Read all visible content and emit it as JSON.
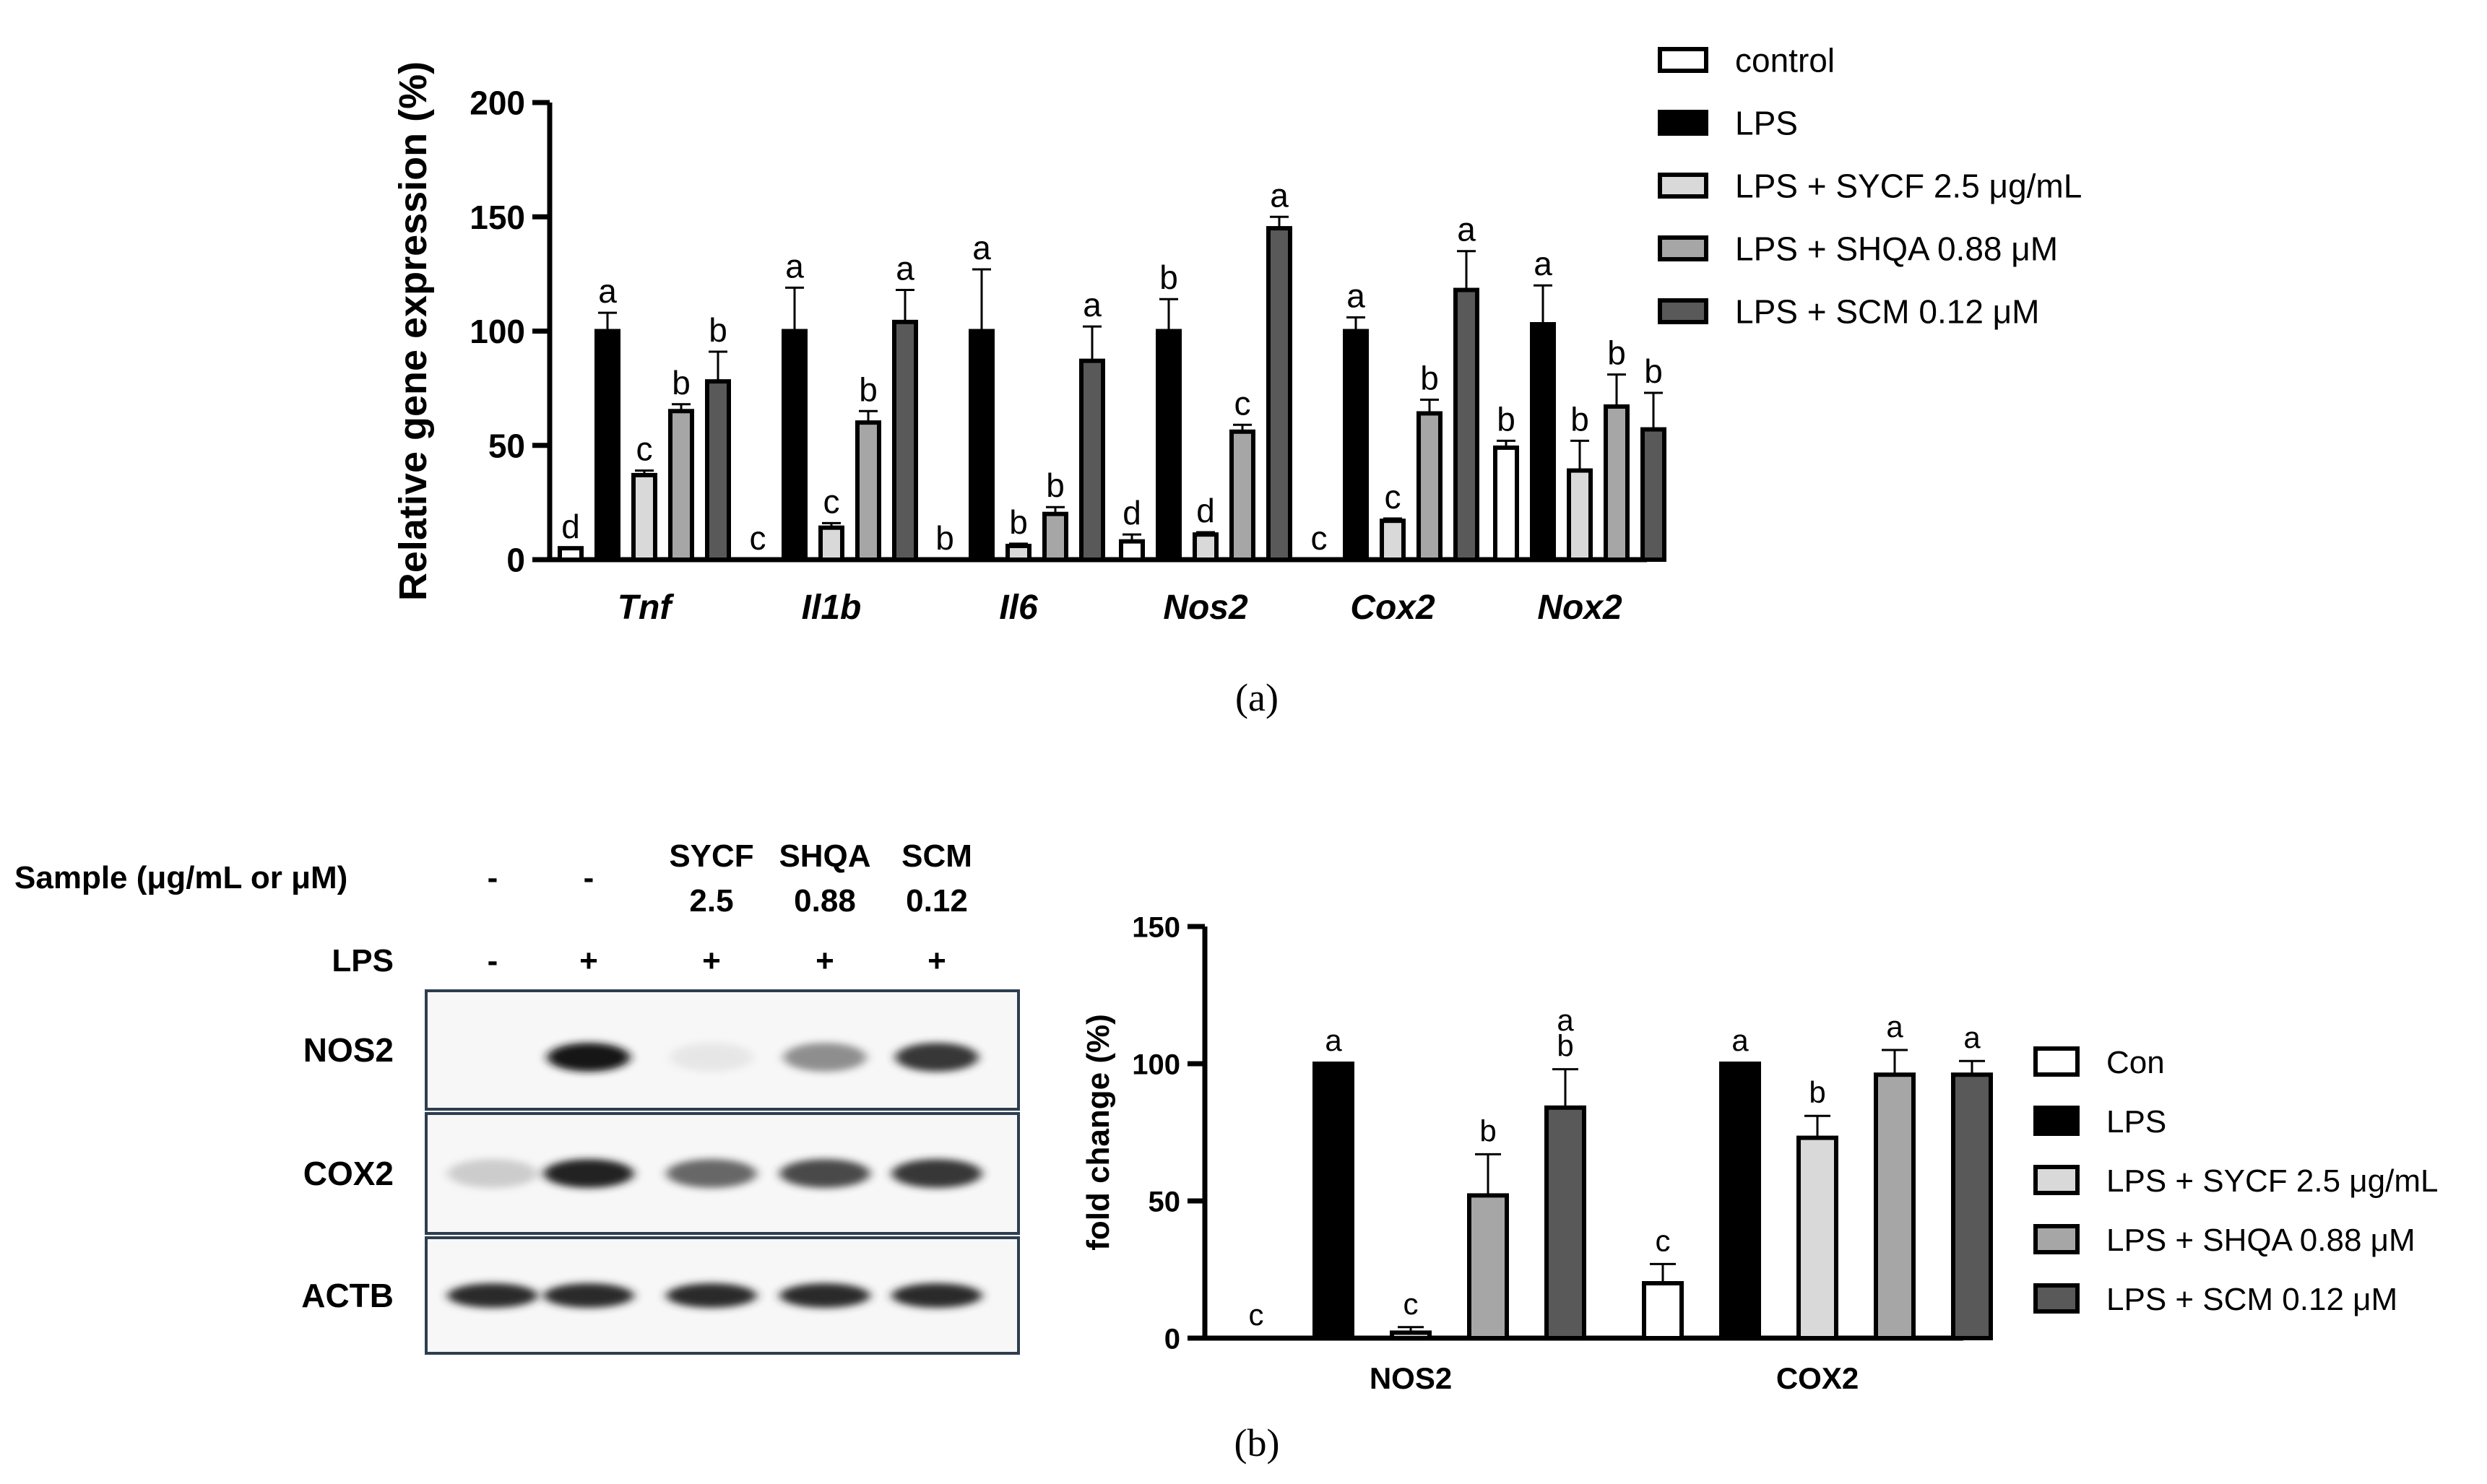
{
  "colors": {
    "control": "#ffffff",
    "lps": "#000000",
    "sycf": "#d9d9d9",
    "shqa": "#a6a6a6",
    "scm": "#595959",
    "blot_frame": "#2d3e50"
  },
  "chart_data": [
    {
      "id": "panel-a",
      "type": "bar",
      "panel_label": "(a)",
      "ylabel": "Relative gene expression (%)",
      "ylim": [
        0,
        200
      ],
      "yticks": [
        "0",
        "50",
        "100",
        "150",
        "200"
      ],
      "categories": [
        "Tnf",
        "Il1b",
        "Il6",
        "Nos2",
        "Cox2",
        "Nox2"
      ],
      "series": [
        {
          "name": "control",
          "values": [
            5,
            0,
            0,
            8,
            0,
            49
          ],
          "errors": [
            0,
            0,
            0,
            3,
            0,
            3
          ],
          "letters": [
            "d",
            "c",
            "b",
            "d",
            "c",
            "b"
          ]
        },
        {
          "name": "LPS",
          "values": [
            100,
            100,
            100,
            100,
            100,
            103
          ],
          "errors": [
            8,
            19,
            27,
            14,
            6,
            17
          ],
          "letters": [
            "a",
            "a",
            "a",
            "b",
            "a",
            "a"
          ]
        },
        {
          "name": "LPS + SYCF 2.5 μg/mL",
          "values": [
            37,
            14,
            6,
            11,
            17,
            39
          ],
          "errors": [
            2,
            2,
            1,
            1,
            1,
            13
          ],
          "letters": [
            "c",
            "c",
            "b",
            "d",
            "c",
            "b"
          ]
        },
        {
          "name": "LPS + SHQA 0.88 μM",
          "values": [
            65,
            60,
            20,
            56,
            64,
            67
          ],
          "errors": [
            3,
            5,
            3,
            3,
            6,
            14
          ],
          "letters": [
            "b",
            "b",
            "b",
            "c",
            "b",
            "b"
          ]
        },
        {
          "name": "LPS + SCM 0.12 μM",
          "values": [
            78,
            104,
            87,
            145,
            118,
            57
          ],
          "errors": [
            13,
            14,
            15,
            5,
            17,
            16
          ],
          "letters": [
            "b",
            "a",
            "a",
            "a",
            "a",
            "b"
          ]
        }
      ],
      "legend_position": "right"
    },
    {
      "id": "panel-b",
      "type": "bar",
      "panel_label": "(b)",
      "ylabel": "fold change (%)",
      "ylim": [
        0,
        150
      ],
      "yticks": [
        "0",
        "50",
        "100",
        "150"
      ],
      "categories": [
        "NOS2",
        "COX2"
      ],
      "series": [
        {
          "name": "Con",
          "values": [
            0,
            20
          ],
          "errors": [
            0,
            7
          ],
          "letters": [
            "c",
            "c"
          ]
        },
        {
          "name": "LPS",
          "values": [
            100,
            100
          ],
          "errors": [
            0,
            0
          ],
          "letters": [
            "a",
            "a"
          ]
        },
        {
          "name": "LPS + SYCF 2.5 μg/mL",
          "values": [
            2,
            73
          ],
          "errors": [
            2,
            8
          ],
          "letters": [
            "c",
            "b"
          ]
        },
        {
          "name": "LPS + SHQA 0.88 μM",
          "values": [
            52,
            96
          ],
          "errors": [
            15,
            9
          ],
          "letters": [
            "b",
            "a"
          ]
        },
        {
          "name": "LPS + SCM 0.12 μM",
          "values": [
            84,
            96
          ],
          "errors": [
            14,
            5
          ],
          "letters": [
            "a\nb",
            "a"
          ]
        }
      ],
      "legend_position": "right"
    }
  ],
  "blot": {
    "sample_label": "Sample (μg/mL or μM)",
    "lps_label": "LPS",
    "lanes": [
      {
        "sample": [
          "-"
        ],
        "lps": "-"
      },
      {
        "sample": [
          "-"
        ],
        "lps": "+"
      },
      {
        "sample": [
          "SYCF",
          "2.5"
        ],
        "lps": "+"
      },
      {
        "sample": [
          "SHQA",
          "0.88"
        ],
        "lps": "+"
      },
      {
        "sample": [
          "SCM",
          "0.12"
        ],
        "lps": "+"
      }
    ],
    "rows": [
      {
        "label": "NOS2",
        "intensity": [
          0,
          1.0,
          0.05,
          0.55,
          0.85
        ]
      },
      {
        "label": "COX2",
        "intensity": [
          0.25,
          0.95,
          0.7,
          0.8,
          0.85
        ]
      },
      {
        "label": "ACTB",
        "intensity": [
          0.9,
          0.9,
          0.9,
          0.9,
          0.9
        ]
      }
    ]
  }
}
